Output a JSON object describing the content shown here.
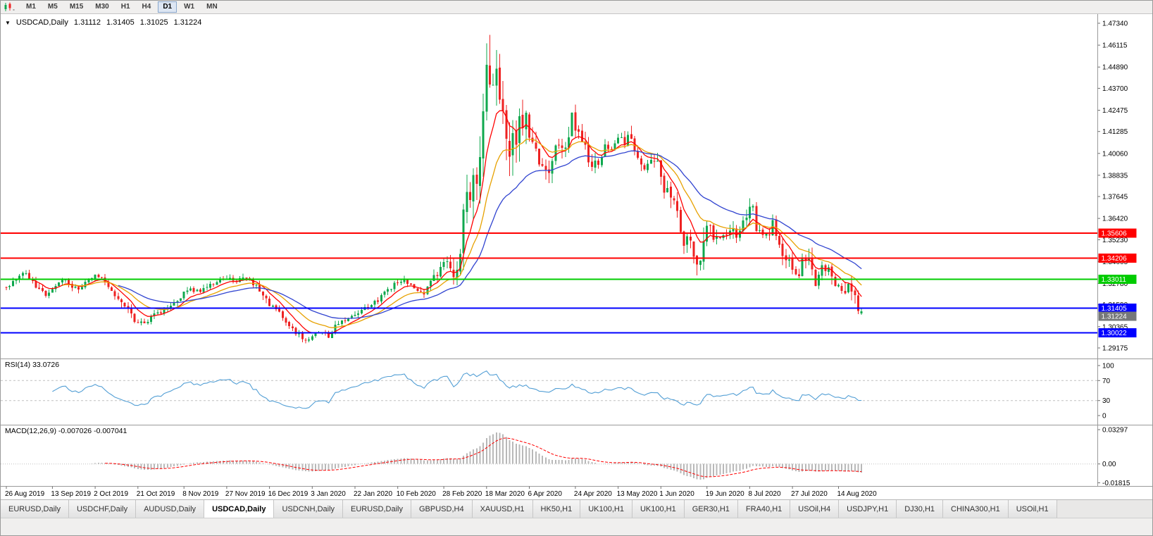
{
  "window": {
    "background": "#ffffff"
  },
  "toolbar": {
    "timeframes": [
      {
        "label": "M1",
        "active": false
      },
      {
        "label": "M5",
        "active": false
      },
      {
        "label": "M15",
        "active": false
      },
      {
        "label": "M30",
        "active": false
      },
      {
        "label": "H1",
        "active": false
      },
      {
        "label": "H4",
        "active": false
      },
      {
        "label": "D1",
        "active": true
      },
      {
        "label": "W1",
        "active": false
      },
      {
        "label": "MN",
        "active": false
      }
    ]
  },
  "chart": {
    "title": {
      "dropdown_glyph": "▼",
      "symbol": "USDCAD,Daily",
      "open": "1.31112",
      "high": "1.31405",
      "low": "1.31025",
      "close": "1.31224"
    }
  },
  "chart_data": {
    "type": "candlestick",
    "symbol": "USDCAD",
    "period": "Daily",
    "quote": {
      "open": 1.31112,
      "high": 1.31405,
      "low": 1.31025,
      "close": 1.31224
    },
    "y_axis_ticks": [
      "1.47340",
      "1.46115",
      "1.44890",
      "1.43700",
      "1.42475",
      "1.41285",
      "1.40060",
      "1.38835",
      "1.37645",
      "1.36420",
      "1.35230",
      "1.34005",
      "1.32780",
      "1.31590",
      "1.30365",
      "1.29175"
    ],
    "x_labels": [
      {
        "text": "26 Aug 2019",
        "i": 0
      },
      {
        "text": "13 Sep 2019",
        "i": 14
      },
      {
        "text": "2 Oct 2019",
        "i": 27
      },
      {
        "text": "21 Oct 2019",
        "i": 40
      },
      {
        "text": "8 Nov 2019",
        "i": 54
      },
      {
        "text": "27 Nov 2019",
        "i": 67
      },
      {
        "text": "16 Dec 2019",
        "i": 80
      },
      {
        "text": "3 Jan 2020",
        "i": 93
      },
      {
        "text": "22 Jan 2020",
        "i": 106
      },
      {
        "text": "10 Feb 2020",
        "i": 119
      },
      {
        "text": "28 Feb 2020",
        "i": 133
      },
      {
        "text": "18 Mar 2020",
        "i": 146
      },
      {
        "text": "6 Apr 2020",
        "i": 159
      },
      {
        "text": "24 Apr 2020",
        "i": 173
      },
      {
        "text": "13 May 2020",
        "i": 186
      },
      {
        "text": "1 Jun 2020",
        "i": 199
      },
      {
        "text": "19 Jun 2020",
        "i": 213
      },
      {
        "text": "8 Jul 2020",
        "i": 226
      },
      {
        "text": "27 Jul 2020",
        "i": 239
      },
      {
        "text": "14 Aug 2020",
        "i": 253
      }
    ],
    "candles": {
      "count": 261,
      "up_color": "#0fa84e",
      "down_color": "#ee2222"
    },
    "price_anchors": [
      [
        0,
        1.326
      ],
      [
        2,
        1.329
      ],
      [
        4,
        1.3322
      ],
      [
        6,
        1.3335
      ],
      [
        8,
        1.3292
      ],
      [
        10,
        1.324
      ],
      [
        12,
        1.3212
      ],
      [
        14,
        1.3252
      ],
      [
        16,
        1.3282
      ],
      [
        18,
        1.3296
      ],
      [
        20,
        1.3262
      ],
      [
        22,
        1.3246
      ],
      [
        24,
        1.3292
      ],
      [
        27,
        1.3322
      ],
      [
        29,
        1.33
      ],
      [
        31,
        1.3262
      ],
      [
        33,
        1.3222
      ],
      [
        35,
        1.3186
      ],
      [
        37,
        1.3122
      ],
      [
        39,
        1.3076
      ],
      [
        41,
        1.3056
      ],
      [
        43,
        1.3066
      ],
      [
        45,
        1.3122
      ],
      [
        47,
        1.3106
      ],
      [
        49,
        1.3142
      ],
      [
        51,
        1.3166
      ],
      [
        54,
        1.3226
      ],
      [
        56,
        1.3242
      ],
      [
        58,
        1.3232
      ],
      [
        60,
        1.3246
      ],
      [
        62,
        1.3272
      ],
      [
        64,
        1.3292
      ],
      [
        66,
        1.3302
      ],
      [
        68,
        1.3316
      ],
      [
        70,
        1.3292
      ],
      [
        72,
        1.3302
      ],
      [
        74,
        1.3292
      ],
      [
        76,
        1.3262
      ],
      [
        78,
        1.3216
      ],
      [
        80,
        1.3166
      ],
      [
        82,
        1.3126
      ],
      [
        84,
        1.3092
      ],
      [
        86,
        1.3052
      ],
      [
        88,
        1.3006
      ],
      [
        90,
        1.2976
      ],
      [
        92,
        1.2962
      ],
      [
        94,
        1.2992
      ],
      [
        96,
        1.3012
      ],
      [
        98,
        1.2986
      ],
      [
        100,
        1.3042
      ],
      [
        102,
        1.3062
      ],
      [
        104,
        1.3082
      ],
      [
        106,
        1.3106
      ],
      [
        108,
        1.3126
      ],
      [
        110,
        1.3146
      ],
      [
        112,
        1.3172
      ],
      [
        114,
        1.3202
      ],
      [
        116,
        1.3242
      ],
      [
        119,
        1.3292
      ],
      [
        121,
        1.3302
      ],
      [
        123,
        1.3272
      ],
      [
        125,
        1.3242
      ],
      [
        127,
        1.3226
      ],
      [
        129,
        1.3282
      ],
      [
        131,
        1.3332
      ],
      [
        133,
        1.3402
      ],
      [
        134,
        1.3382
      ],
      [
        136,
        1.3342
      ],
      [
        138,
        1.3432
      ],
      [
        139,
        1.3682
      ],
      [
        140,
        1.3742
      ],
      [
        141,
        1.3772
      ],
      [
        142,
        1.3932
      ],
      [
        143,
        1.3832
      ],
      [
        144,
        1.3992
      ],
      [
        145,
        1.4252
      ],
      [
        146,
        1.4482
      ],
      [
        147,
        1.4432
      ],
      [
        148,
        1.4452
      ],
      [
        149,
        1.4502
      ],
      [
        150,
        1.4362
      ],
      [
        151,
        1.4192
      ],
      [
        152,
        1.4052
      ],
      [
        153,
        1.3992
      ],
      [
        154,
        1.4092
      ],
      [
        155,
        1.4062
      ],
      [
        156,
        1.4212
      ],
      [
        157,
        1.4142
      ],
      [
        158,
        1.4192
      ],
      [
        159,
        1.4092
      ],
      [
        161,
        1.4012
      ],
      [
        163,
        1.3922
      ],
      [
        165,
        1.3882
      ],
      [
        167,
        1.4062
      ],
      [
        169,
        1.4012
      ],
      [
        171,
        1.4122
      ],
      [
        172,
        1.4202
      ],
      [
        174,
        1.4092
      ],
      [
        176,
        1.4032
      ],
      [
        178,
        1.3922
      ],
      [
        180,
        1.3952
      ],
      [
        182,
        1.4062
      ],
      [
        184,
        1.4032
      ],
      [
        186,
        1.4102
      ],
      [
        188,
        1.4062
      ],
      [
        190,
        1.4112
      ],
      [
        192,
        1.3962
      ],
      [
        194,
        1.3912
      ],
      [
        196,
        1.3952
      ],
      [
        198,
        1.3982
      ],
      [
        199,
        1.3892
      ],
      [
        200,
        1.3792
      ],
      [
        202,
        1.3772
      ],
      [
        204,
        1.3682
      ],
      [
        205,
        1.3572
      ],
      [
        206,
        1.3522
      ],
      [
        208,
        1.3492
      ],
      [
        209,
        1.3422
      ],
      [
        210,
        1.3382
      ],
      [
        211,
        1.3412
      ],
      [
        213,
        1.3602
      ],
      [
        214,
        1.3622
      ],
      [
        215,
        1.3552
      ],
      [
        217,
        1.3522
      ],
      [
        219,
        1.3562
      ],
      [
        221,
        1.3602
      ],
      [
        222,
        1.3542
      ],
      [
        224,
        1.3642
      ],
      [
        226,
        1.3682
      ],
      [
        227,
        1.3692
      ],
      [
        228,
        1.3582
      ],
      [
        230,
        1.3572
      ],
      [
        232,
        1.3542
      ],
      [
        233,
        1.3612
      ],
      [
        234,
        1.3532
      ],
      [
        236,
        1.3452
      ],
      [
        238,
        1.3412
      ],
      [
        239,
        1.3352
      ],
      [
        241,
        1.3332
      ],
      [
        242,
        1.3422
      ],
      [
        244,
        1.3402
      ],
      [
        245,
        1.3332
      ],
      [
        246,
        1.3272
      ],
      [
        248,
        1.3382
      ],
      [
        250,
        1.3352
      ],
      [
        251,
        1.3312
      ],
      [
        252,
        1.3242
      ],
      [
        253,
        1.3262
      ],
      [
        254,
        1.3212
      ],
      [
        255,
        1.3232
      ],
      [
        256,
        1.3282
      ],
      [
        257,
        1.3242
      ],
      [
        258,
        1.3192
      ],
      [
        259,
        1.3152
      ],
      [
        260,
        1.3122
      ]
    ],
    "wick_overrides": [
      {
        "i": 147,
        "high": 1.4668
      },
      {
        "i": 92,
        "low": 1.2949
      }
    ],
    "moving_averages": [
      {
        "period": 8,
        "color": "#ff0000"
      },
      {
        "period": 17,
        "color": "#e7a100"
      },
      {
        "period": 34,
        "color": "#3144d0"
      }
    ],
    "horizontal_lines": [
      {
        "price": 1.35606,
        "label": "1.35606",
        "color": "#ff0000"
      },
      {
        "price": 1.34206,
        "label": "1.34206",
        "color": "#ff0000"
      },
      {
        "price": 1.33011,
        "label": "1.33011",
        "color": "#00cc00"
      },
      {
        "price": 1.31405,
        "label": "1.31405",
        "color": "#0000ff"
      },
      {
        "price": 1.30022,
        "label": "1.30022",
        "color": "#0000ff"
      }
    ],
    "bid_tag": {
      "price": 1.31224,
      "label": "1.31224",
      "color": "#76787a"
    },
    "rsi": {
      "label": "RSI(14) 33.0726",
      "period": 14,
      "value": 33.0726,
      "levels": [
        "100",
        "70",
        "30",
        "0"
      ],
      "line_color": "#539fd5"
    },
    "macd": {
      "label": "MACD(12,26,9) -0.007026 -0.007041",
      "fast": 12,
      "slow": 26,
      "signal_period": 9,
      "value": -0.007026,
      "signal_value": -0.007041,
      "axis_ticks": [
        "0.03297",
        "0.00",
        "-0.01815"
      ],
      "histogram_color": "#b8b8b8",
      "signal_color": "#ff0000"
    }
  },
  "tabs": [
    {
      "label": "EURUSD,Daily",
      "active": false
    },
    {
      "label": "USDCHF,Daily",
      "active": false
    },
    {
      "label": "AUDUSD,Daily",
      "active": false
    },
    {
      "label": "USDCAD,Daily",
      "active": true
    },
    {
      "label": "USDCNH,Daily",
      "active": false
    },
    {
      "label": "EURUSD,Daily",
      "active": false
    },
    {
      "label": "GBPUSD,H4",
      "active": false
    },
    {
      "label": "XAUUSD,H1",
      "active": false
    },
    {
      "label": "HK50,H1",
      "active": false
    },
    {
      "label": "UK100,H1",
      "active": false
    },
    {
      "label": "UK100,H1",
      "active": false
    },
    {
      "label": "GER30,H1",
      "active": false
    },
    {
      "label": "FRA40,H1",
      "active": false
    },
    {
      "label": "USOil,H4",
      "active": false
    },
    {
      "label": "USDJPY,H1",
      "active": false
    },
    {
      "label": "DJ30,H1",
      "active": false
    },
    {
      "label": "CHINA300,H1",
      "active": false
    },
    {
      "label": "USOil,H1",
      "active": false
    }
  ]
}
